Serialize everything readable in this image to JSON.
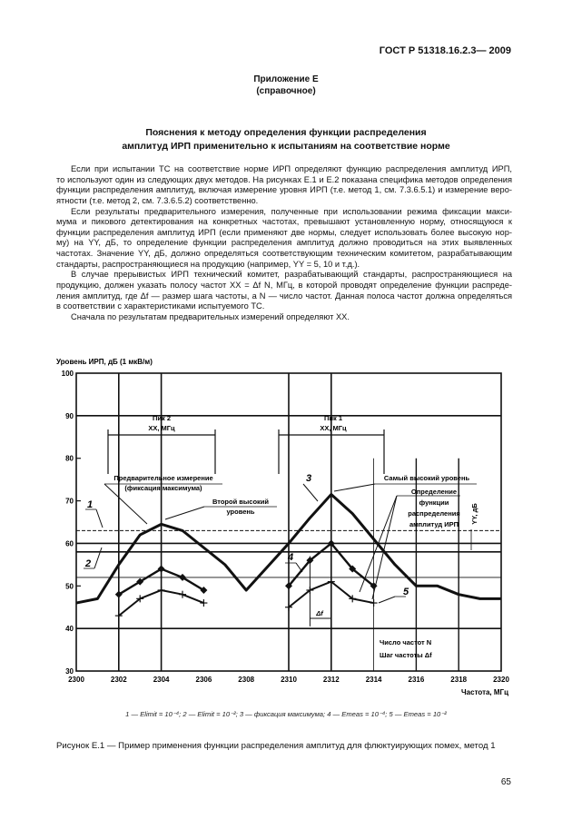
{
  "header": {
    "doc_number": "ГОСТ Р 51318.16.2.3— 2009"
  },
  "appendix": {
    "title": "Приложение Е",
    "type": "(справочное)"
  },
  "section_title": [
    "Пояснения к  методу определения функции  распределения",
    "амплитуд ИРП  применительно к испытаниям на соответствие норме"
  ],
  "paragraphs": [
    [
      "Если при испытании ТС на соответствие норме ИРП определяют функцию распределения амплитуд ИРП,",
      "то используют один из следующих двух методов. На рисунках Е.1 и Е.2 показана специфика методов определения",
      "функции распределения амплитуд, включая измерение уровня ИРП (т.е. метод 1, см. 7.3.6.5.1) и измерение веро-",
      "ятности (т.е. метод 2, см. 7.3.6.5.2) соответственно."
    ],
    [
      "Если результаты предварительного измерения, полученные при использовании режима фиксации макси-",
      "мума и пикового детектирования  на конкретных частотах,  превышают установленную норму, относящуюся к",
      "функции распределения амплитуд ИРП (если применяют две нормы, следует использовать более высокую нор-",
      "му) на YY, дБ, то определение функции распределения амплитуд  должно проводиться  на этих выявленных",
      "частотах. Значение YY, дБ, должно определяться соответствующим техническим комитетом, разрабатывающим",
      "стандарты, распространяющиеся  на  продукцию  (например, YY = 5, 10  и т.д.)."
    ],
    [
      "В случае прерывистых ИРП технический  комитет, разрабатывающий стандарты,     распространяющиеся на",
      "продукцию,  должен   указать полосу частот XX  = Δf N, МГц, в которой проводят определение функции распреде-",
      "ления амплитуд, где Δf — размер шага частоты, а N — число  частот. Данная полоса частот должна определяться",
      "в соответствии с характеристиками испытуемого ТС."
    ],
    [
      "Сначала по результатам предварительных измерений определяют   XX."
    ]
  ],
  "chart_data": {
    "type": "line",
    "ylabel": "Уровень ИРП, дБ (1 мкВ/м)",
    "xlabel": "Частота, МГц",
    "xlim": [
      2300,
      2320
    ],
    "ylim": [
      30,
      100
    ],
    "xticks": [
      "2300",
      "2302",
      "2304",
      "2306",
      "2308",
      "2310",
      "2312",
      "2314",
      "2316",
      "2318",
      "2320"
    ],
    "yticks": [
      "30",
      "40",
      "50",
      "60",
      "70",
      "80",
      "90",
      "100"
    ],
    "series": [
      {
        "name": "3",
        "marker": "none",
        "x": [
          2300,
          2301,
          2302,
          2303,
          2304,
          2305,
          2306,
          2307,
          2308,
          2309,
          2310,
          2311,
          2312,
          2313,
          2314,
          2315,
          2316,
          2317,
          2318,
          2319,
          2320
        ],
        "y": [
          46,
          47,
          55,
          62,
          64.5,
          63,
          59,
          55,
          49,
          54.5,
          60,
          66,
          71.5,
          67,
          61,
          55,
          50,
          50,
          48,
          47,
          47
        ]
      },
      {
        "name": "4",
        "marker": "diamond",
        "segments": [
          {
            "x": [
              2302,
              2303,
              2304,
              2305,
              2306
            ],
            "y": [
              48,
              51,
              54,
              52,
              49
            ]
          },
          {
            "x": [
              2310,
              2311,
              2312,
              2313,
              2314
            ],
            "y": [
              50,
              56,
              60,
              54,
              50
            ]
          }
        ]
      },
      {
        "name": "5",
        "marker": "cross",
        "segments": [
          {
            "x": [
              2302,
              2303,
              2304,
              2305,
              2306
            ],
            "y": [
              43,
              47,
              49,
              48,
              46
            ]
          },
          {
            "x": [
              2310,
              2311,
              2312,
              2313,
              2314
            ],
            "y": [
              45,
              49,
              51,
              47,
              46
            ]
          }
        ]
      }
    ],
    "hlines": [
      {
        "name": "1",
        "y": 63,
        "style": "dashed"
      },
      {
        "name": "2",
        "y": 58,
        "style": "solid"
      },
      {
        "y": 60,
        "style": "solid"
      },
      {
        "y": 52,
        "style": "thin"
      }
    ],
    "annotations": {
      "peak2": "Пик 2",
      "peak1": "Пик 1",
      "xx": "XX, МГц",
      "pre_meas": "Предварительное измерение",
      "max_hold": "(фиксация максимума)",
      "second_high": "Второй высокий",
      "level": "уровень",
      "highest": "Самый высокий уровень",
      "det": [
        "Определение",
        "функции",
        "распределения",
        "амплитуд ИРП"
      ],
      "yy": "YY, дБ",
      "df": "Δf",
      "n_freq": "Число частот  N",
      "step": "Шаг частоты  Δf",
      "l1": "1",
      "l2": "2",
      "l3": "3",
      "l4": "4",
      "l5": "5"
    },
    "legend": "1 — Elimit = 10⁻⁴; 2 — Elimit = 10⁻²; 3 — фиксация максимума; 4 — Emeas = 10⁻⁴; 5 — Emeas = 10⁻²"
  },
  "caption": "Рисунок Е.1 — Пример применения функции распределения амплитуд для флюктуирующих помех, метод 1",
  "page_number": "65"
}
